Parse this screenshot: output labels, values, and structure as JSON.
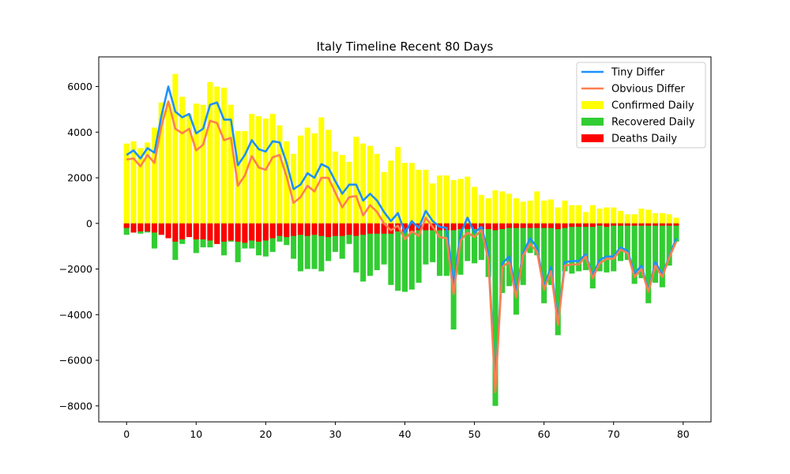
{
  "chart_data": {
    "type": "bar",
    "title": "Italy Timeline Recent 80 Days",
    "xlabel": "",
    "ylabel": "",
    "xlim": [
      -4,
      84
    ],
    "ylim": [
      -8700,
      7300
    ],
    "xticks": [
      0,
      10,
      20,
      30,
      40,
      50,
      60,
      70,
      80
    ],
    "yticks": [
      -8000,
      -6000,
      -4000,
      -2000,
      0,
      2000,
      4000,
      6000
    ],
    "legend_position": "top-right",
    "grid": false,
    "x": [
      0,
      1,
      2,
      3,
      4,
      5,
      6,
      7,
      8,
      9,
      10,
      11,
      12,
      13,
      14,
      15,
      16,
      17,
      18,
      19,
      20,
      21,
      22,
      23,
      24,
      25,
      26,
      27,
      28,
      29,
      30,
      31,
      32,
      33,
      34,
      35,
      36,
      37,
      38,
      39,
      40,
      41,
      42,
      43,
      44,
      45,
      46,
      47,
      48,
      49,
      50,
      51,
      52,
      53,
      54,
      55,
      56,
      57,
      58,
      59,
      60,
      61,
      62,
      63,
      64,
      65,
      66,
      67,
      68,
      69,
      70,
      71,
      72,
      73,
      74,
      75,
      76,
      77,
      78,
      79
    ],
    "series": [
      {
        "name": "Confirmed Daily",
        "type": "bar",
        "color": "#ffff00",
        "values": [
          3500,
          3600,
          3300,
          3550,
          4200,
          5300,
          5250,
          6550,
          5550,
          4800,
          5250,
          5200,
          6200,
          6000,
          5950,
          5200,
          4050,
          4050,
          4800,
          4700,
          4600,
          4800,
          4300,
          3600,
          3050,
          3850,
          4200,
          3950,
          4650,
          4100,
          3150,
          3000,
          2700,
          3800,
          3500,
          3400,
          3050,
          2250,
          2750,
          3350,
          2650,
          2650,
          2350,
          2350,
          1750,
          2100,
          2100,
          1900,
          1950,
          2050,
          1600,
          1250,
          1100,
          1450,
          1400,
          1300,
          1100,
          950,
          1000,
          1400,
          1000,
          1050,
          700,
          1000,
          800,
          800,
          500,
          800,
          650,
          700,
          700,
          550,
          400,
          400,
          650,
          600,
          450,
          450,
          400,
          250
        ]
      },
      {
        "name": "Recovered Daily",
        "type": "bar",
        "color": "#32cd32",
        "values": [
          -500,
          -400,
          -450,
          -400,
          -1100,
          -500,
          -400,
          -1600,
          -900,
          -500,
          -1300,
          -1050,
          -1050,
          -900,
          -1400,
          -800,
          -1700,
          -1100,
          -1100,
          -1400,
          -1450,
          -1250,
          -800,
          -950,
          -1550,
          -2100,
          -2000,
          -2000,
          -2100,
          -1650,
          -1250,
          -1550,
          -900,
          -2150,
          -2550,
          -2300,
          -2050,
          -1800,
          -2700,
          -2950,
          -3000,
          -2900,
          -2600,
          -1800,
          -1700,
          -2300,
          -2300,
          -4650,
          -2250,
          -1650,
          -1750,
          -1600,
          -2350,
          -8000,
          -3050,
          -2750,
          -4000,
          -2700,
          -1300,
          -1400,
          -3500,
          -2700,
          -4900,
          -2100,
          -2200,
          -2100,
          -2050,
          -2850,
          -2100,
          -2150,
          -2100,
          -1650,
          -1600,
          -2650,
          -2400,
          -3500,
          -2600,
          -2800,
          -1850,
          -800
        ]
      },
      {
        "name": "Deaths Daily",
        "type": "bar",
        "color": "#ff0000",
        "values": [
          -200,
          -400,
          -350,
          -350,
          -400,
          -500,
          -650,
          -800,
          -700,
          -600,
          -700,
          -700,
          -750,
          -900,
          -800,
          -750,
          -800,
          -850,
          -750,
          -800,
          -750,
          -650,
          -550,
          -600,
          -550,
          -500,
          -550,
          -500,
          -550,
          -600,
          -550,
          -550,
          -500,
          -550,
          -500,
          -450,
          -450,
          -450,
          -450,
          -350,
          -350,
          -350,
          -300,
          -300,
          -300,
          -300,
          -300,
          -300,
          -250,
          -250,
          -250,
          -250,
          -250,
          -300,
          -250,
          -200,
          -200,
          -200,
          -200,
          -200,
          -200,
          -200,
          -250,
          -200,
          -150,
          -150,
          -150,
          -150,
          -100,
          -150,
          -100,
          -100,
          -100,
          -100,
          -100,
          -100,
          -100,
          -100,
          -100,
          -100
        ]
      },
      {
        "name": "Tiny Differ",
        "type": "line",
        "color": "#1e90ff",
        "values": [
          3000,
          3200,
          2850,
          3300,
          3100,
          4700,
          6000,
          4900,
          4650,
          4800,
          3950,
          4150,
          5200,
          5300,
          4550,
          4550,
          2550,
          3000,
          3650,
          3250,
          3150,
          3600,
          3550,
          2650,
          1500,
          1700,
          2200,
          2000,
          2600,
          2450,
          1850,
          1300,
          1700,
          1700,
          1000,
          1300,
          1000,
          500,
          100,
          450,
          -400,
          100,
          -200,
          550,
          100,
          -150,
          -200,
          -2700,
          -450,
          250,
          -400,
          -150,
          -1300,
          -7200,
          -1750,
          -1450,
          -3000,
          -1300,
          -650,
          -1050,
          -2800,
          -1900,
          -4300,
          -1700,
          -1650,
          -1650,
          -1350,
          -2300,
          -1600,
          -1450,
          -1450,
          -1050,
          -1200,
          -2200,
          -1850,
          -2950,
          -1700,
          -2250,
          -1450,
          -650
        ]
      },
      {
        "name": "Obvious Differ",
        "type": "line",
        "color": "#ff7f50",
        "values": [
          2800,
          2850,
          2500,
          3000,
          2650,
          4250,
          5350,
          4150,
          3950,
          4150,
          3200,
          3450,
          4500,
          4400,
          3650,
          3750,
          1650,
          2100,
          2950,
          2450,
          2350,
          2900,
          3000,
          2050,
          900,
          1150,
          1650,
          1400,
          2000,
          2000,
          1350,
          700,
          1150,
          1200,
          350,
          800,
          500,
          0,
          -300,
          -100,
          -700,
          -350,
          -550,
          250,
          -150,
          -600,
          -650,
          -3100,
          -750,
          -400,
          -600,
          -300,
          -1600,
          -7400,
          -1900,
          -1700,
          -3250,
          -1400,
          -900,
          -1250,
          -2900,
          -2100,
          -4450,
          -1850,
          -1800,
          -1800,
          -1450,
          -2400,
          -1750,
          -1550,
          -1550,
          -1150,
          -1300,
          -2350,
          -2000,
          -3000,
          -1850,
          -2350,
          -1500,
          -800
        ]
      }
    ]
  }
}
